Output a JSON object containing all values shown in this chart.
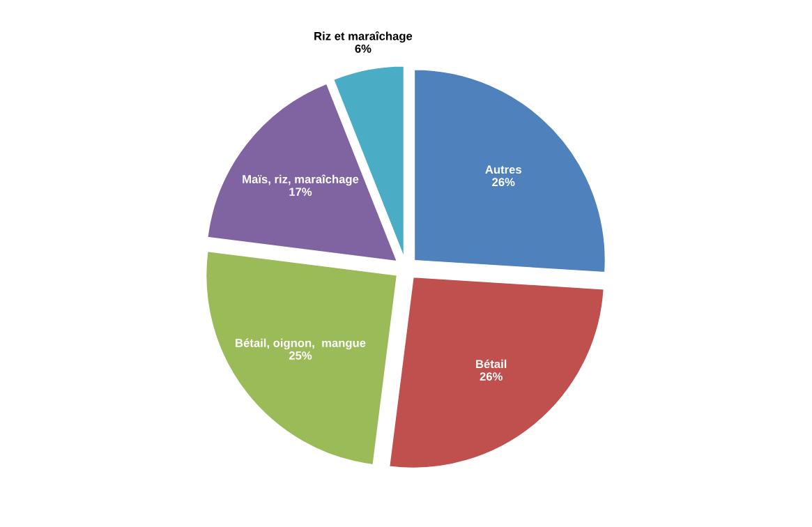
{
  "chart_data": {
    "type": "pie",
    "categories": [
      "Autres",
      "Bétail",
      "Bétail, oignon,  mangue",
      "Maïs, riz, maraîchage",
      "Riz et maraîchage"
    ],
    "values": [
      26,
      26,
      25,
      17,
      6
    ],
    "value_labels": [
      "26%",
      "26%",
      "25%",
      "17%",
      "6%"
    ],
    "colors": [
      "#4f81bd",
      "#c0504d",
      "#9bbb59",
      "#8064a2",
      "#4bacc6"
    ],
    "legend": false
  }
}
